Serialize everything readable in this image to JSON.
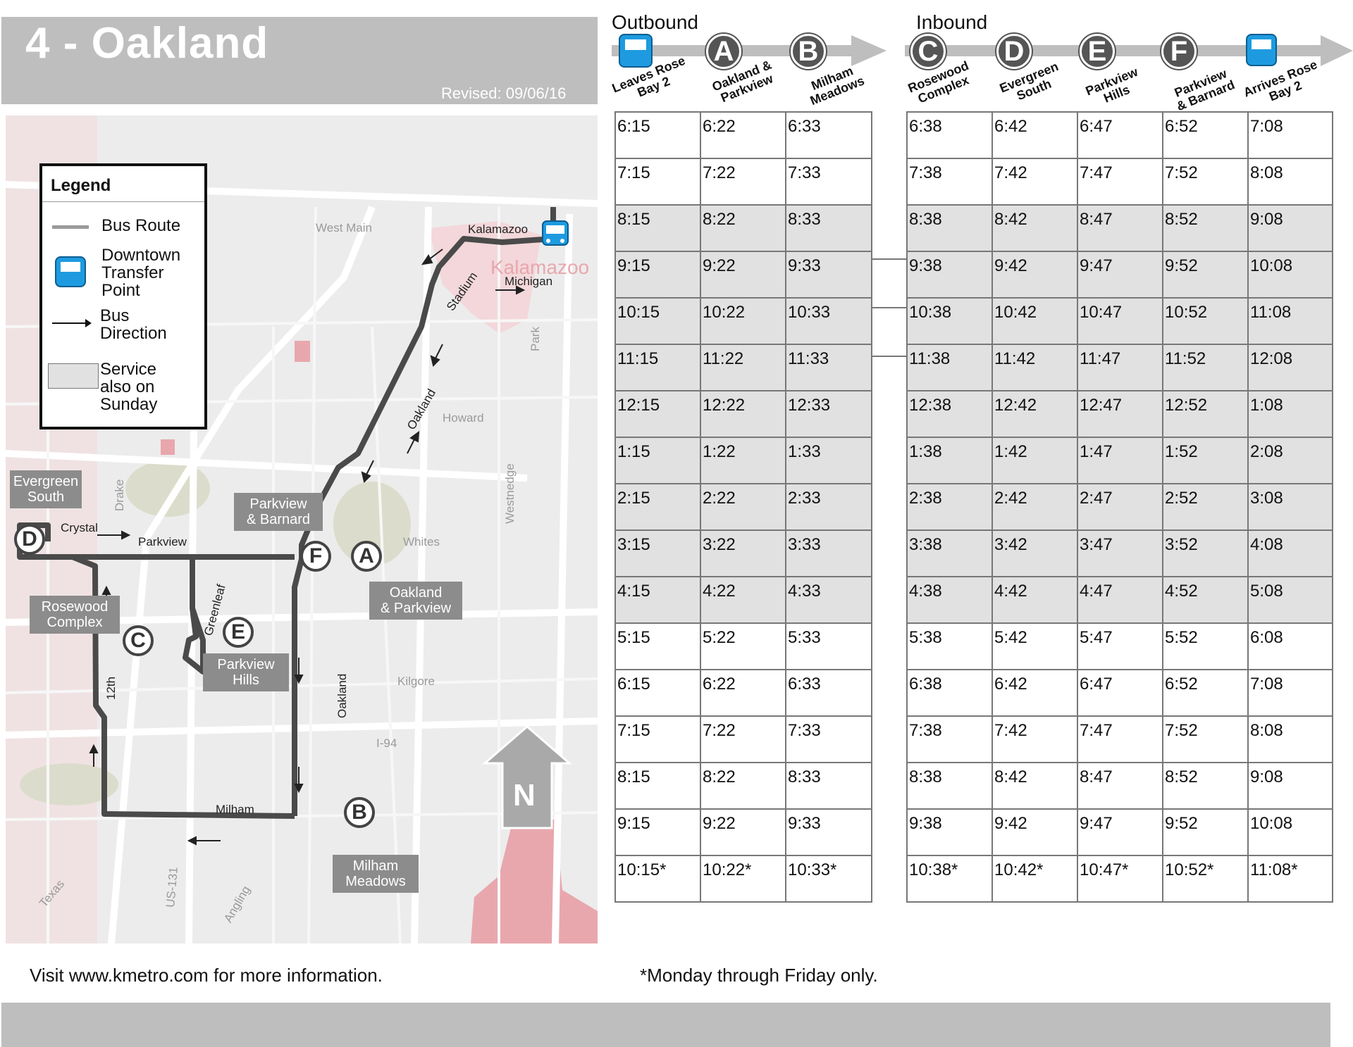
{
  "header": {
    "title": "4 - Oakland",
    "revised": "Revised: 09/06/16"
  },
  "legend": {
    "title": "Legend",
    "route": "Bus Route",
    "transfer": [
      "Downtown",
      "Transfer",
      "Point"
    ],
    "direction": [
      "Bus",
      "Direction"
    ],
    "sunday": [
      "Service",
      "also on",
      "Sunday"
    ]
  },
  "map": {
    "streets": {
      "west_main": "West Main",
      "kalamazoo": "Kalamazoo",
      "kalamazoo_city": "Kalamazoo",
      "michigan": "Michigan",
      "stadium": "Stadium",
      "park": "Park",
      "oakland_n": "Oakland",
      "howard": "Howard",
      "drake": "Drake",
      "crystal": "Crystal",
      "parkview": "Parkview",
      "whites": "Whites",
      "westnedge": "Westnedge",
      "greenleaf": "Greenleaf",
      "twelfth": "12th",
      "oakland_s": "Oakland",
      "kilgore": "Kilgore",
      "i94": "I-94",
      "milham": "Milham",
      "texas": "Texas",
      "us131": "US-131",
      "angling": "Angling"
    },
    "stops": {
      "evergreen": [
        "Evergreen",
        "South"
      ],
      "parkview_barnard": [
        "Parkview",
        "& Barnard"
      ],
      "rosewood": [
        "Rosewood",
        "Complex"
      ],
      "oakland_parkview": [
        "Oakland",
        "& Parkview"
      ],
      "parkview_hills": [
        "Parkview",
        "Hills"
      ],
      "milham_meadows": [
        "Milham",
        "Meadows"
      ]
    },
    "stop_letters": {
      "A": "A",
      "B": "B",
      "C": "C",
      "D": "D",
      "E": "E",
      "F": "F"
    },
    "north": "N",
    "colors": {
      "route": "#4a4a4a",
      "transfer": "#1e9be0",
      "urban": "#e8a7ad"
    }
  },
  "schedule": {
    "outbound_title": "Outbound",
    "inbound_title": "Inbound",
    "outbound_stops": [
      {
        "letter": "",
        "icon": "bus-icon",
        "name": [
          "Leaves Rose",
          "Bay 2"
        ]
      },
      {
        "letter": "A",
        "name": [
          "Oakland &",
          "Parkview"
        ]
      },
      {
        "letter": "B",
        "name": [
          "Milham",
          "Meadows"
        ]
      }
    ],
    "inbound_stops": [
      {
        "letter": "C",
        "name": [
          "Rosewood",
          "Complex"
        ]
      },
      {
        "letter": "D",
        "name": [
          "Evergreen",
          "South"
        ]
      },
      {
        "letter": "E",
        "name": [
          "Parkview",
          "Hills"
        ]
      },
      {
        "letter": "F",
        "name": [
          "Parkview",
          "& Barnard"
        ]
      },
      {
        "letter": "",
        "icon": "bus-icon",
        "name": [
          "Arrives Rose",
          "Bay 2"
        ]
      }
    ],
    "rows": [
      {
        "sunday": false,
        "out": [
          "6:15",
          "6:22",
          "6:33"
        ],
        "in": [
          "6:38",
          "6:42",
          "6:47",
          "6:52",
          "7:08"
        ]
      },
      {
        "sunday": false,
        "out": [
          "7:15",
          "7:22",
          "7:33"
        ],
        "in": [
          "7:38",
          "7:42",
          "7:47",
          "7:52",
          "8:08"
        ]
      },
      {
        "sunday": true,
        "out": [
          "8:15",
          "8:22",
          "8:33"
        ],
        "in": [
          "8:38",
          "8:42",
          "8:47",
          "8:52",
          "9:08"
        ]
      },
      {
        "sunday": true,
        "out": [
          "9:15",
          "9:22",
          "9:33"
        ],
        "in": [
          "9:38",
          "9:42",
          "9:47",
          "9:52",
          "10:08"
        ]
      },
      {
        "sunday": true,
        "out": [
          "10:15",
          "10:22",
          "10:33"
        ],
        "in": [
          "10:38",
          "10:42",
          "10:47",
          "10:52",
          "11:08"
        ]
      },
      {
        "sunday": true,
        "out": [
          "11:15",
          "11:22",
          "11:33"
        ],
        "in": [
          "11:38",
          "11:42",
          "11:47",
          "11:52",
          "12:08"
        ]
      },
      {
        "sunday": true,
        "out": [
          "12:15",
          "12:22",
          "12:33"
        ],
        "in": [
          "12:38",
          "12:42",
          "12:47",
          "12:52",
          "1:08"
        ]
      },
      {
        "sunday": true,
        "out": [
          "1:15",
          "1:22",
          "1:33"
        ],
        "in": [
          "1:38",
          "1:42",
          "1:47",
          "1:52",
          "2:08"
        ]
      },
      {
        "sunday": true,
        "out": [
          "2:15",
          "2:22",
          "2:33"
        ],
        "in": [
          "2:38",
          "2:42",
          "2:47",
          "2:52",
          "3:08"
        ]
      },
      {
        "sunday": true,
        "out": [
          "3:15",
          "3:22",
          "3:33"
        ],
        "in": [
          "3:38",
          "3:42",
          "3:47",
          "3:52",
          "4:08"
        ]
      },
      {
        "sunday": true,
        "out": [
          "4:15",
          "4:22",
          "4:33"
        ],
        "in": [
          "4:38",
          "4:42",
          "4:47",
          "4:52",
          "5:08"
        ]
      },
      {
        "sunday": false,
        "out": [
          "5:15",
          "5:22",
          "5:33"
        ],
        "in": [
          "5:38",
          "5:42",
          "5:47",
          "5:52",
          "6:08"
        ]
      },
      {
        "sunday": false,
        "out": [
          "6:15",
          "6:22",
          "6:33"
        ],
        "in": [
          "6:38",
          "6:42",
          "6:47",
          "6:52",
          "7:08"
        ]
      },
      {
        "sunday": false,
        "out": [
          "7:15",
          "7:22",
          "7:33"
        ],
        "in": [
          "7:38",
          "7:42",
          "7:47",
          "7:52",
          "8:08"
        ]
      },
      {
        "sunday": false,
        "out": [
          "8:15",
          "8:22",
          "8:33"
        ],
        "in": [
          "8:38",
          "8:42",
          "8:47",
          "8:52",
          "9:08"
        ]
      },
      {
        "sunday": false,
        "out": [
          "9:15",
          "9:22",
          "9:33"
        ],
        "in": [
          "9:38",
          "9:42",
          "9:47",
          "9:52",
          "10:08"
        ]
      },
      {
        "sunday": false,
        "out": [
          "10:15*",
          "10:22*",
          "10:33*"
        ],
        "in": [
          "10:38*",
          "10:42*",
          "10:47*",
          "10:52*",
          "11:08*"
        ]
      }
    ]
  },
  "footer": {
    "info": "Visit www.kmetro.com for more information.",
    "note": "*Monday through Friday only."
  }
}
